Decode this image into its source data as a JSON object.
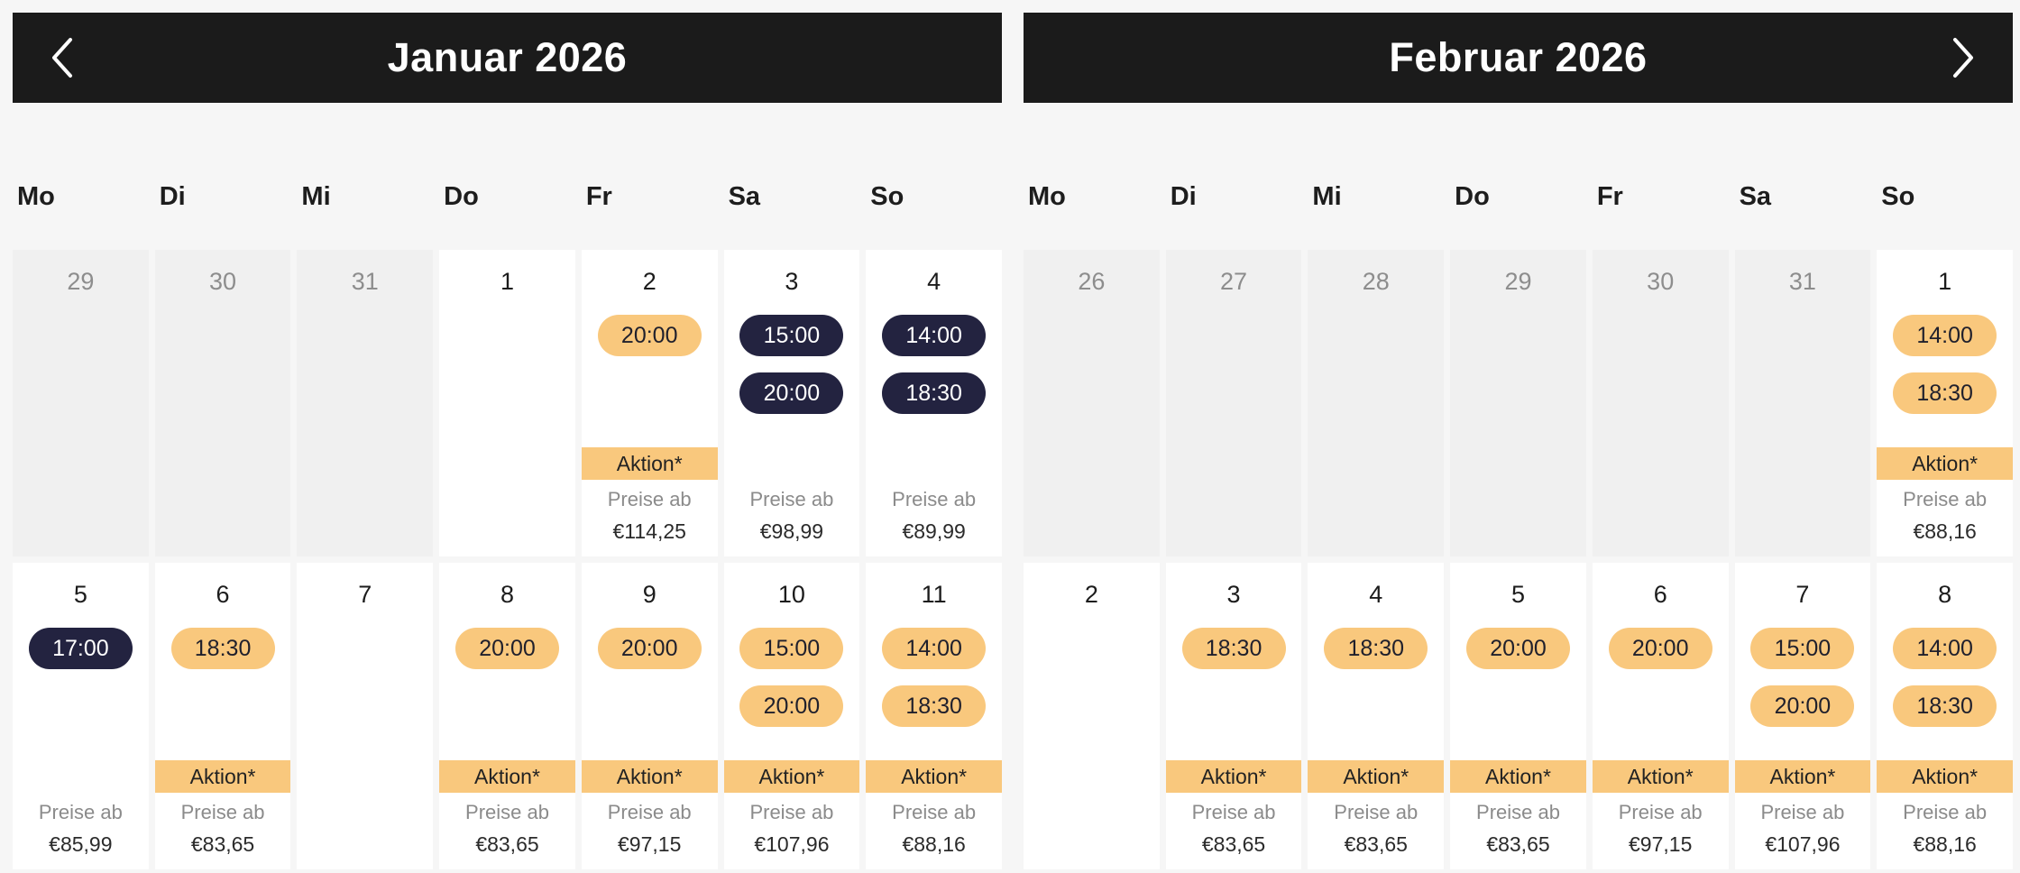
{
  "labels": {
    "aktion": "Aktion*",
    "price_prefix": "Preise ab"
  },
  "colors": {
    "header_bg": "#1b1b1b",
    "accent_orange": "#f9c87d",
    "accent_navy": "#232340",
    "outside_cell_bg": "#f0f0f0",
    "page_bg": "#f6f6f6"
  },
  "icons": {
    "prev": "chevron-left-icon",
    "next": "chevron-right-icon"
  },
  "calendar": {
    "months": [
      {
        "title": "Januar 2026",
        "nav": "prev",
        "weekdays": [
          "Mo",
          "Di",
          "Mi",
          "Do",
          "Fr",
          "Sa",
          "So"
        ],
        "weeks": [
          [
            {
              "day": "29",
              "outside": true
            },
            {
              "day": "30",
              "outside": true
            },
            {
              "day": "31",
              "outside": true
            },
            {
              "day": "1"
            },
            {
              "day": "2",
              "times": [
                {
                  "label": "20:00",
                  "variant": "orange"
                }
              ],
              "aktion": true,
              "price": "€114,25"
            },
            {
              "day": "3",
              "times": [
                {
                  "label": "15:00",
                  "variant": "navy"
                },
                {
                  "label": "20:00",
                  "variant": "navy"
                }
              ],
              "price": "€98,99"
            },
            {
              "day": "4",
              "times": [
                {
                  "label": "14:00",
                  "variant": "navy"
                },
                {
                  "label": "18:30",
                  "variant": "navy"
                }
              ],
              "price": "€89,99"
            }
          ],
          [
            {
              "day": "5",
              "times": [
                {
                  "label": "17:00",
                  "variant": "navy"
                }
              ],
              "price": "€85,99"
            },
            {
              "day": "6",
              "times": [
                {
                  "label": "18:30",
                  "variant": "orange"
                }
              ],
              "aktion": true,
              "price": "€83,65"
            },
            {
              "day": "7"
            },
            {
              "day": "8",
              "times": [
                {
                  "label": "20:00",
                  "variant": "orange"
                }
              ],
              "aktion": true,
              "price": "€83,65"
            },
            {
              "day": "9",
              "times": [
                {
                  "label": "20:00",
                  "variant": "orange"
                }
              ],
              "aktion": true,
              "price": "€97,15"
            },
            {
              "day": "10",
              "times": [
                {
                  "label": "15:00",
                  "variant": "orange"
                },
                {
                  "label": "20:00",
                  "variant": "orange"
                }
              ],
              "aktion": true,
              "price": "€107,96"
            },
            {
              "day": "11",
              "times": [
                {
                  "label": "14:00",
                  "variant": "orange"
                },
                {
                  "label": "18:30",
                  "variant": "orange"
                }
              ],
              "aktion": true,
              "price": "€88,16"
            }
          ]
        ]
      },
      {
        "title": "Februar 2026",
        "nav": "next",
        "weekdays": [
          "Mo",
          "Di",
          "Mi",
          "Do",
          "Fr",
          "Sa",
          "So"
        ],
        "weeks": [
          [
            {
              "day": "26",
              "outside": true
            },
            {
              "day": "27",
              "outside": true
            },
            {
              "day": "28",
              "outside": true
            },
            {
              "day": "29",
              "outside": true
            },
            {
              "day": "30",
              "outside": true
            },
            {
              "day": "31",
              "outside": true
            },
            {
              "day": "1",
              "times": [
                {
                  "label": "14:00",
                  "variant": "orange"
                },
                {
                  "label": "18:30",
                  "variant": "orange"
                }
              ],
              "aktion": true,
              "price": "€88,16"
            }
          ],
          [
            {
              "day": "2"
            },
            {
              "day": "3",
              "times": [
                {
                  "label": "18:30",
                  "variant": "orange"
                }
              ],
              "aktion": true,
              "price": "€83,65"
            },
            {
              "day": "4",
              "times": [
                {
                  "label": "18:30",
                  "variant": "orange"
                }
              ],
              "aktion": true,
              "price": "€83,65"
            },
            {
              "day": "5",
              "times": [
                {
                  "label": "20:00",
                  "variant": "orange"
                }
              ],
              "aktion": true,
              "price": "€83,65"
            },
            {
              "day": "6",
              "times": [
                {
                  "label": "20:00",
                  "variant": "orange"
                }
              ],
              "aktion": true,
              "price": "€97,15"
            },
            {
              "day": "7",
              "times": [
                {
                  "label": "15:00",
                  "variant": "orange"
                },
                {
                  "label": "20:00",
                  "variant": "orange"
                }
              ],
              "aktion": true,
              "price": "€107,96"
            },
            {
              "day": "8",
              "times": [
                {
                  "label": "14:00",
                  "variant": "orange"
                },
                {
                  "label": "18:30",
                  "variant": "orange"
                }
              ],
              "aktion": true,
              "price": "€88,16"
            }
          ]
        ]
      }
    ]
  }
}
